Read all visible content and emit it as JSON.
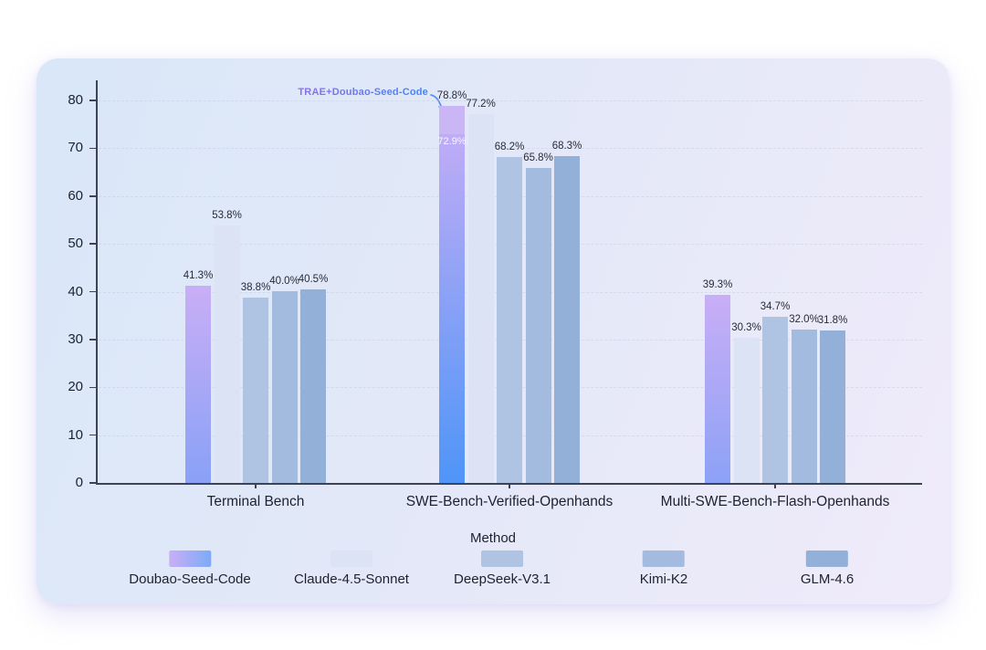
{
  "chart_data": {
    "type": "bar",
    "title": "",
    "xlabel": "Method",
    "ylabel": "",
    "ylim": [
      0,
      80
    ],
    "yticks": [
      "0",
      "10",
      "20",
      "30",
      "40",
      "50",
      "60",
      "70",
      "80"
    ],
    "grid": "horizontal-dashed",
    "legend_position": "bottom",
    "categories": [
      "Terminal Bench",
      "SWE-Bench-Verified-Openhands",
      "Multi-SWE-Bench-Flash-Openhands"
    ],
    "series": [
      {
        "name": "Doubao-Seed-Code",
        "color_top": "#c9aef6",
        "color_bottom": "#4f95f7",
        "values": [
          41.3,
          72.9,
          39.3
        ],
        "value_labels": [
          "41.3%",
          "72.9%",
          "39.3%"
        ]
      },
      {
        "name": "Claude-4.5-Sonnet",
        "color": "#dbe3f4",
        "values": [
          53.8,
          77.2,
          30.3
        ],
        "value_labels": [
          "53.8%",
          "77.2%",
          "30.3%"
        ]
      },
      {
        "name": "DeepSeek-V3.1",
        "color": "#afc3e3",
        "values": [
          38.8,
          68.2,
          34.7
        ],
        "value_labels": [
          "38.8%",
          "68.2%",
          "34.7%"
        ]
      },
      {
        "name": "Kimi-K2",
        "color": "#a3bbde",
        "values": [
          40.0,
          65.8,
          32.0
        ],
        "value_labels": [
          "40.0%",
          "65.8%",
          "32.0%"
        ]
      },
      {
        "name": "GLM-4.6",
        "color": "#92b0d8",
        "values": [
          40.5,
          68.3,
          31.8
        ],
        "value_labels": [
          "40.5%",
          "68.3%",
          "31.8%"
        ]
      }
    ],
    "overlay": {
      "annotation": "TRAE+Doubao-Seed-Code",
      "series_index": 0,
      "category_index": 1,
      "base_value": 72.9,
      "base_label": "72.9%",
      "total_value": 78.8,
      "total_label": "78.8%",
      "cap_color": "#cbb6f5",
      "arrow_color": "#5b8ef5"
    }
  }
}
